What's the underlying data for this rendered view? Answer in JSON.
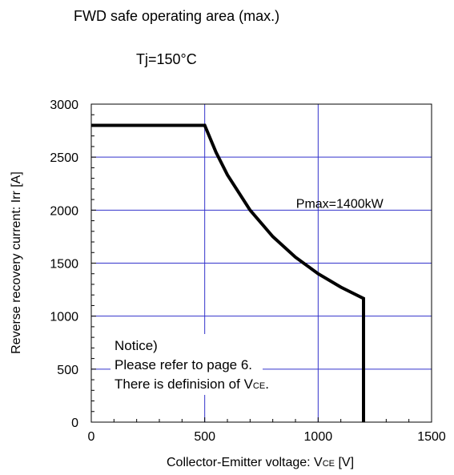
{
  "chart_data": {
    "type": "line",
    "title": "FWD safe operating area (max.)",
    "subtitle": "Tj=150°C",
    "xlabel": "Collector-Emitter voltage: V",
    "xlabel_sub": "CE",
    "xlabel_unit": " [V]",
    "ylabel": "Reverse recovery current: Irr [A]",
    "xlim": [
      0,
      1500
    ],
    "ylim": [
      0,
      3000
    ],
    "xticks": [
      0,
      500,
      1000,
      1500
    ],
    "yticks": [
      0,
      500,
      1000,
      1500,
      2000,
      2500,
      3000
    ],
    "grid": true,
    "series": [
      {
        "color": "#000000",
        "points": [
          [
            0,
            2800
          ],
          [
            500,
            2800
          ],
          [
            550,
            2545
          ],
          [
            600,
            2333
          ],
          [
            700,
            2000
          ],
          [
            800,
            1750
          ],
          [
            900,
            1556
          ],
          [
            1000,
            1400
          ],
          [
            1100,
            1273
          ],
          [
            1200,
            1167
          ],
          [
            1200,
            0
          ]
        ]
      }
    ],
    "annotations": [
      {
        "text": "Pmax=1400kW",
        "x": 1095,
        "y": 2000
      }
    ],
    "notice": {
      "line1": "Notice)",
      "line2": "Please refer to page 6.",
      "line3_prefix": "There is definision of V",
      "line3_sub": "CE",
      "line3_suffix": "."
    },
    "grid_color": "#3333cc"
  }
}
